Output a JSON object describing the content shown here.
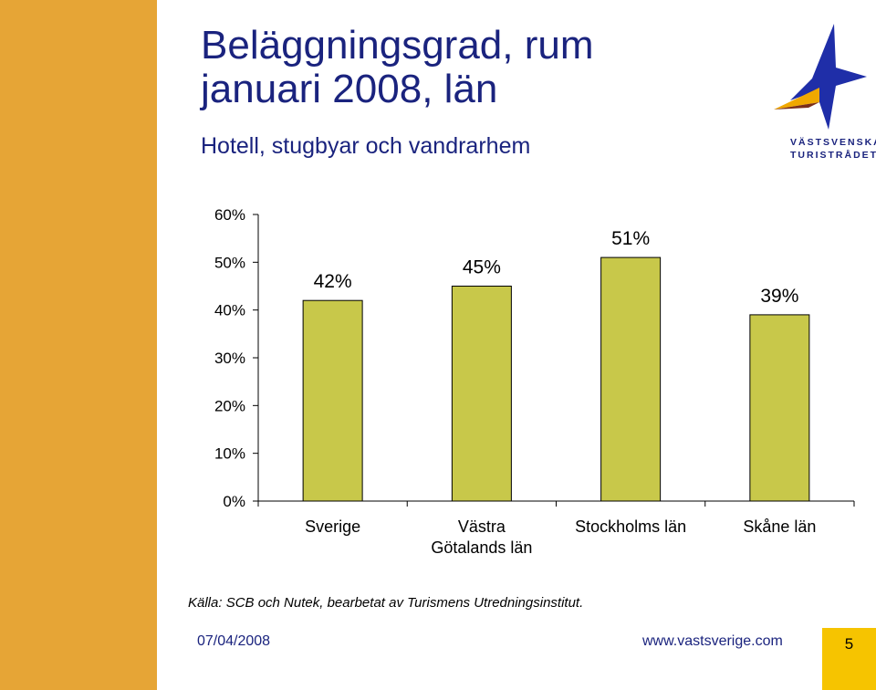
{
  "slide": {
    "title_line1": "Beläggningsgrad, rum",
    "title_line2": "januari 2008, län",
    "subtitle": "Hotell, stugbyar och vandrarhem",
    "logo_line1": "VÄSTSVENSKA",
    "logo_line2": "TURISTRÅDET",
    "source": "Källa: SCB och Nutek, bearbetat av Turismens Utredningsinstitut.",
    "date": "07/04/2008",
    "url": "www.vastsverige.com",
    "page_number": "5"
  },
  "colors": {
    "side_bar": "#e6a536",
    "bar_fill": "#c8c84a",
    "title_text": "#1a237e",
    "page_box": "#f6c400",
    "logo_star": "#1f2ea8",
    "logo_wing": "#f0a800"
  },
  "chart_data": {
    "type": "bar",
    "categories": [
      [
        "Sverige"
      ],
      [
        "Västra",
        "Götalands län"
      ],
      [
        "Stockholms län"
      ],
      [
        "Skåne län"
      ]
    ],
    "values": [
      42,
      45,
      51,
      39
    ],
    "value_labels": [
      "42%",
      "45%",
      "51%",
      "39%"
    ],
    "y_ticks": [
      "0%",
      "10%",
      "20%",
      "30%",
      "40%",
      "50%",
      "60%"
    ],
    "ylim": [
      0,
      60
    ],
    "ylabel": "",
    "xlabel": "",
    "grid": false,
    "legend": false
  }
}
